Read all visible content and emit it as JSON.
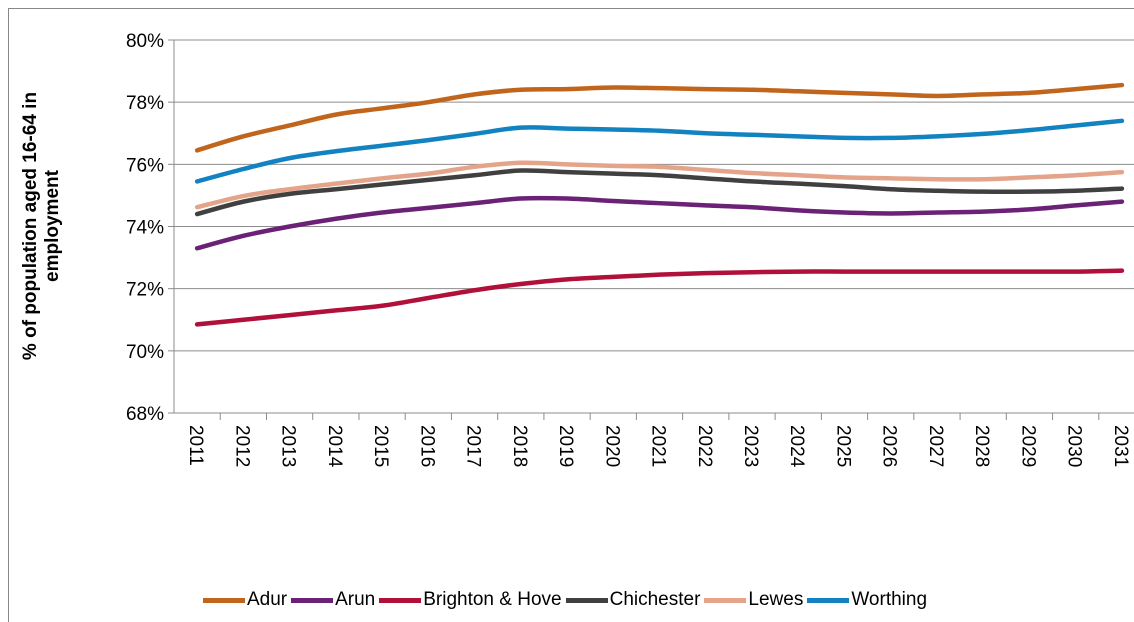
{
  "chart_data": {
    "type": "line",
    "y_label": "% of population aged 16-64 in employment",
    "categories": [
      "2011",
      "2012",
      "2013",
      "2014",
      "2015",
      "2016",
      "2017",
      "2018",
      "2019",
      "2020",
      "2021",
      "2022",
      "2023",
      "2024",
      "2025",
      "2026",
      "2027",
      "2028",
      "2029",
      "2030",
      "2031"
    ],
    "series": [
      {
        "name": "Adur",
        "color": "#c0651b",
        "values": [
          76.45,
          76.9,
          77.25,
          77.6,
          77.8,
          78.0,
          78.25,
          78.4,
          78.42,
          78.47,
          78.45,
          78.42,
          78.4,
          78.35,
          78.3,
          78.25,
          78.2,
          78.25,
          78.3,
          78.42,
          78.55
        ]
      },
      {
        "name": "Arun",
        "color": "#6a2176",
        "values": [
          73.3,
          73.7,
          74.0,
          74.25,
          74.45,
          74.6,
          74.75,
          74.9,
          74.9,
          74.82,
          74.75,
          74.68,
          74.62,
          74.52,
          74.45,
          74.42,
          74.45,
          74.48,
          74.55,
          74.68,
          74.8
        ]
      },
      {
        "name": "Brighton & Hove",
        "color": "#b0103a",
        "values": [
          70.85,
          71.0,
          71.15,
          71.3,
          71.45,
          71.7,
          71.95,
          72.15,
          72.3,
          72.38,
          72.45,
          72.5,
          72.53,
          72.55,
          72.55,
          72.55,
          72.55,
          72.55,
          72.55,
          72.55,
          72.58
        ]
      },
      {
        "name": "Chichester",
        "color": "#404040",
        "values": [
          74.4,
          74.8,
          75.05,
          75.2,
          75.35,
          75.5,
          75.65,
          75.8,
          75.75,
          75.7,
          75.65,
          75.55,
          75.45,
          75.38,
          75.3,
          75.2,
          75.15,
          75.12,
          75.12,
          75.15,
          75.22
        ]
      },
      {
        "name": "Lewes",
        "color": "#e3a48a",
        "values": [
          74.62,
          74.98,
          75.2,
          75.38,
          75.55,
          75.7,
          75.92,
          76.05,
          76.0,
          75.95,
          75.92,
          75.82,
          75.72,
          75.65,
          75.58,
          75.55,
          75.52,
          75.52,
          75.58,
          75.65,
          75.75
        ]
      },
      {
        "name": "Worthing",
        "color": "#1283c0",
        "values": [
          75.45,
          75.85,
          76.2,
          76.42,
          76.6,
          76.78,
          76.98,
          77.18,
          77.15,
          77.12,
          77.08,
          77.0,
          76.95,
          76.9,
          76.85,
          76.85,
          76.9,
          76.98,
          77.1,
          77.25,
          77.4
        ]
      }
    ],
    "ylim": [
      68,
      80
    ],
    "yticks": [
      {
        "value": 68,
        "label": "68%"
      },
      {
        "value": 70,
        "label": "70%"
      },
      {
        "value": 72,
        "label": "72%"
      },
      {
        "value": 74,
        "label": "74%"
      },
      {
        "value": 76,
        "label": "76%"
      },
      {
        "value": 78,
        "label": "78%"
      },
      {
        "value": 80,
        "label": "80%"
      }
    ],
    "grid": true,
    "legend": "bottom"
  }
}
